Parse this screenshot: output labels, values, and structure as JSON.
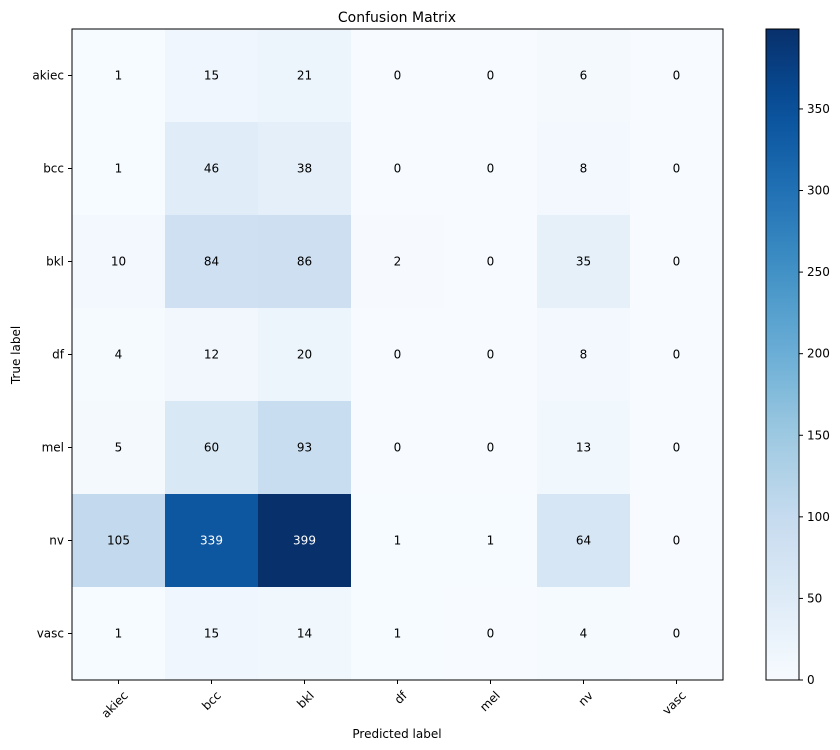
{
  "chart_data": {
    "type": "heatmap",
    "title": "Confusion Matrix",
    "xlabel": "Predicted label",
    "ylabel": "True label",
    "x_categories": [
      "akiec",
      "bcc",
      "bkl",
      "df",
      "mel",
      "nv",
      "vasc"
    ],
    "y_categories": [
      "akiec",
      "bcc",
      "bkl",
      "df",
      "mel",
      "nv",
      "vasc"
    ],
    "values": [
      [
        1,
        15,
        21,
        0,
        0,
        6,
        0
      ],
      [
        1,
        46,
        38,
        0,
        0,
        8,
        0
      ],
      [
        10,
        84,
        86,
        2,
        0,
        35,
        0
      ],
      [
        4,
        12,
        20,
        0,
        0,
        8,
        0
      ],
      [
        5,
        60,
        93,
        0,
        0,
        13,
        0
      ],
      [
        105,
        339,
        399,
        1,
        1,
        64,
        0
      ],
      [
        1,
        15,
        14,
        1,
        0,
        4,
        0
      ]
    ],
    "colormap": "Blues",
    "vmin": 0,
    "vmax": 399,
    "colorbar_ticks": [
      0,
      50,
      100,
      150,
      200,
      250,
      300,
      350
    ],
    "annotation_colors": {
      "light": "#ffffff",
      "dark": "#000000"
    },
    "x_tick_rotation_deg": 45
  }
}
